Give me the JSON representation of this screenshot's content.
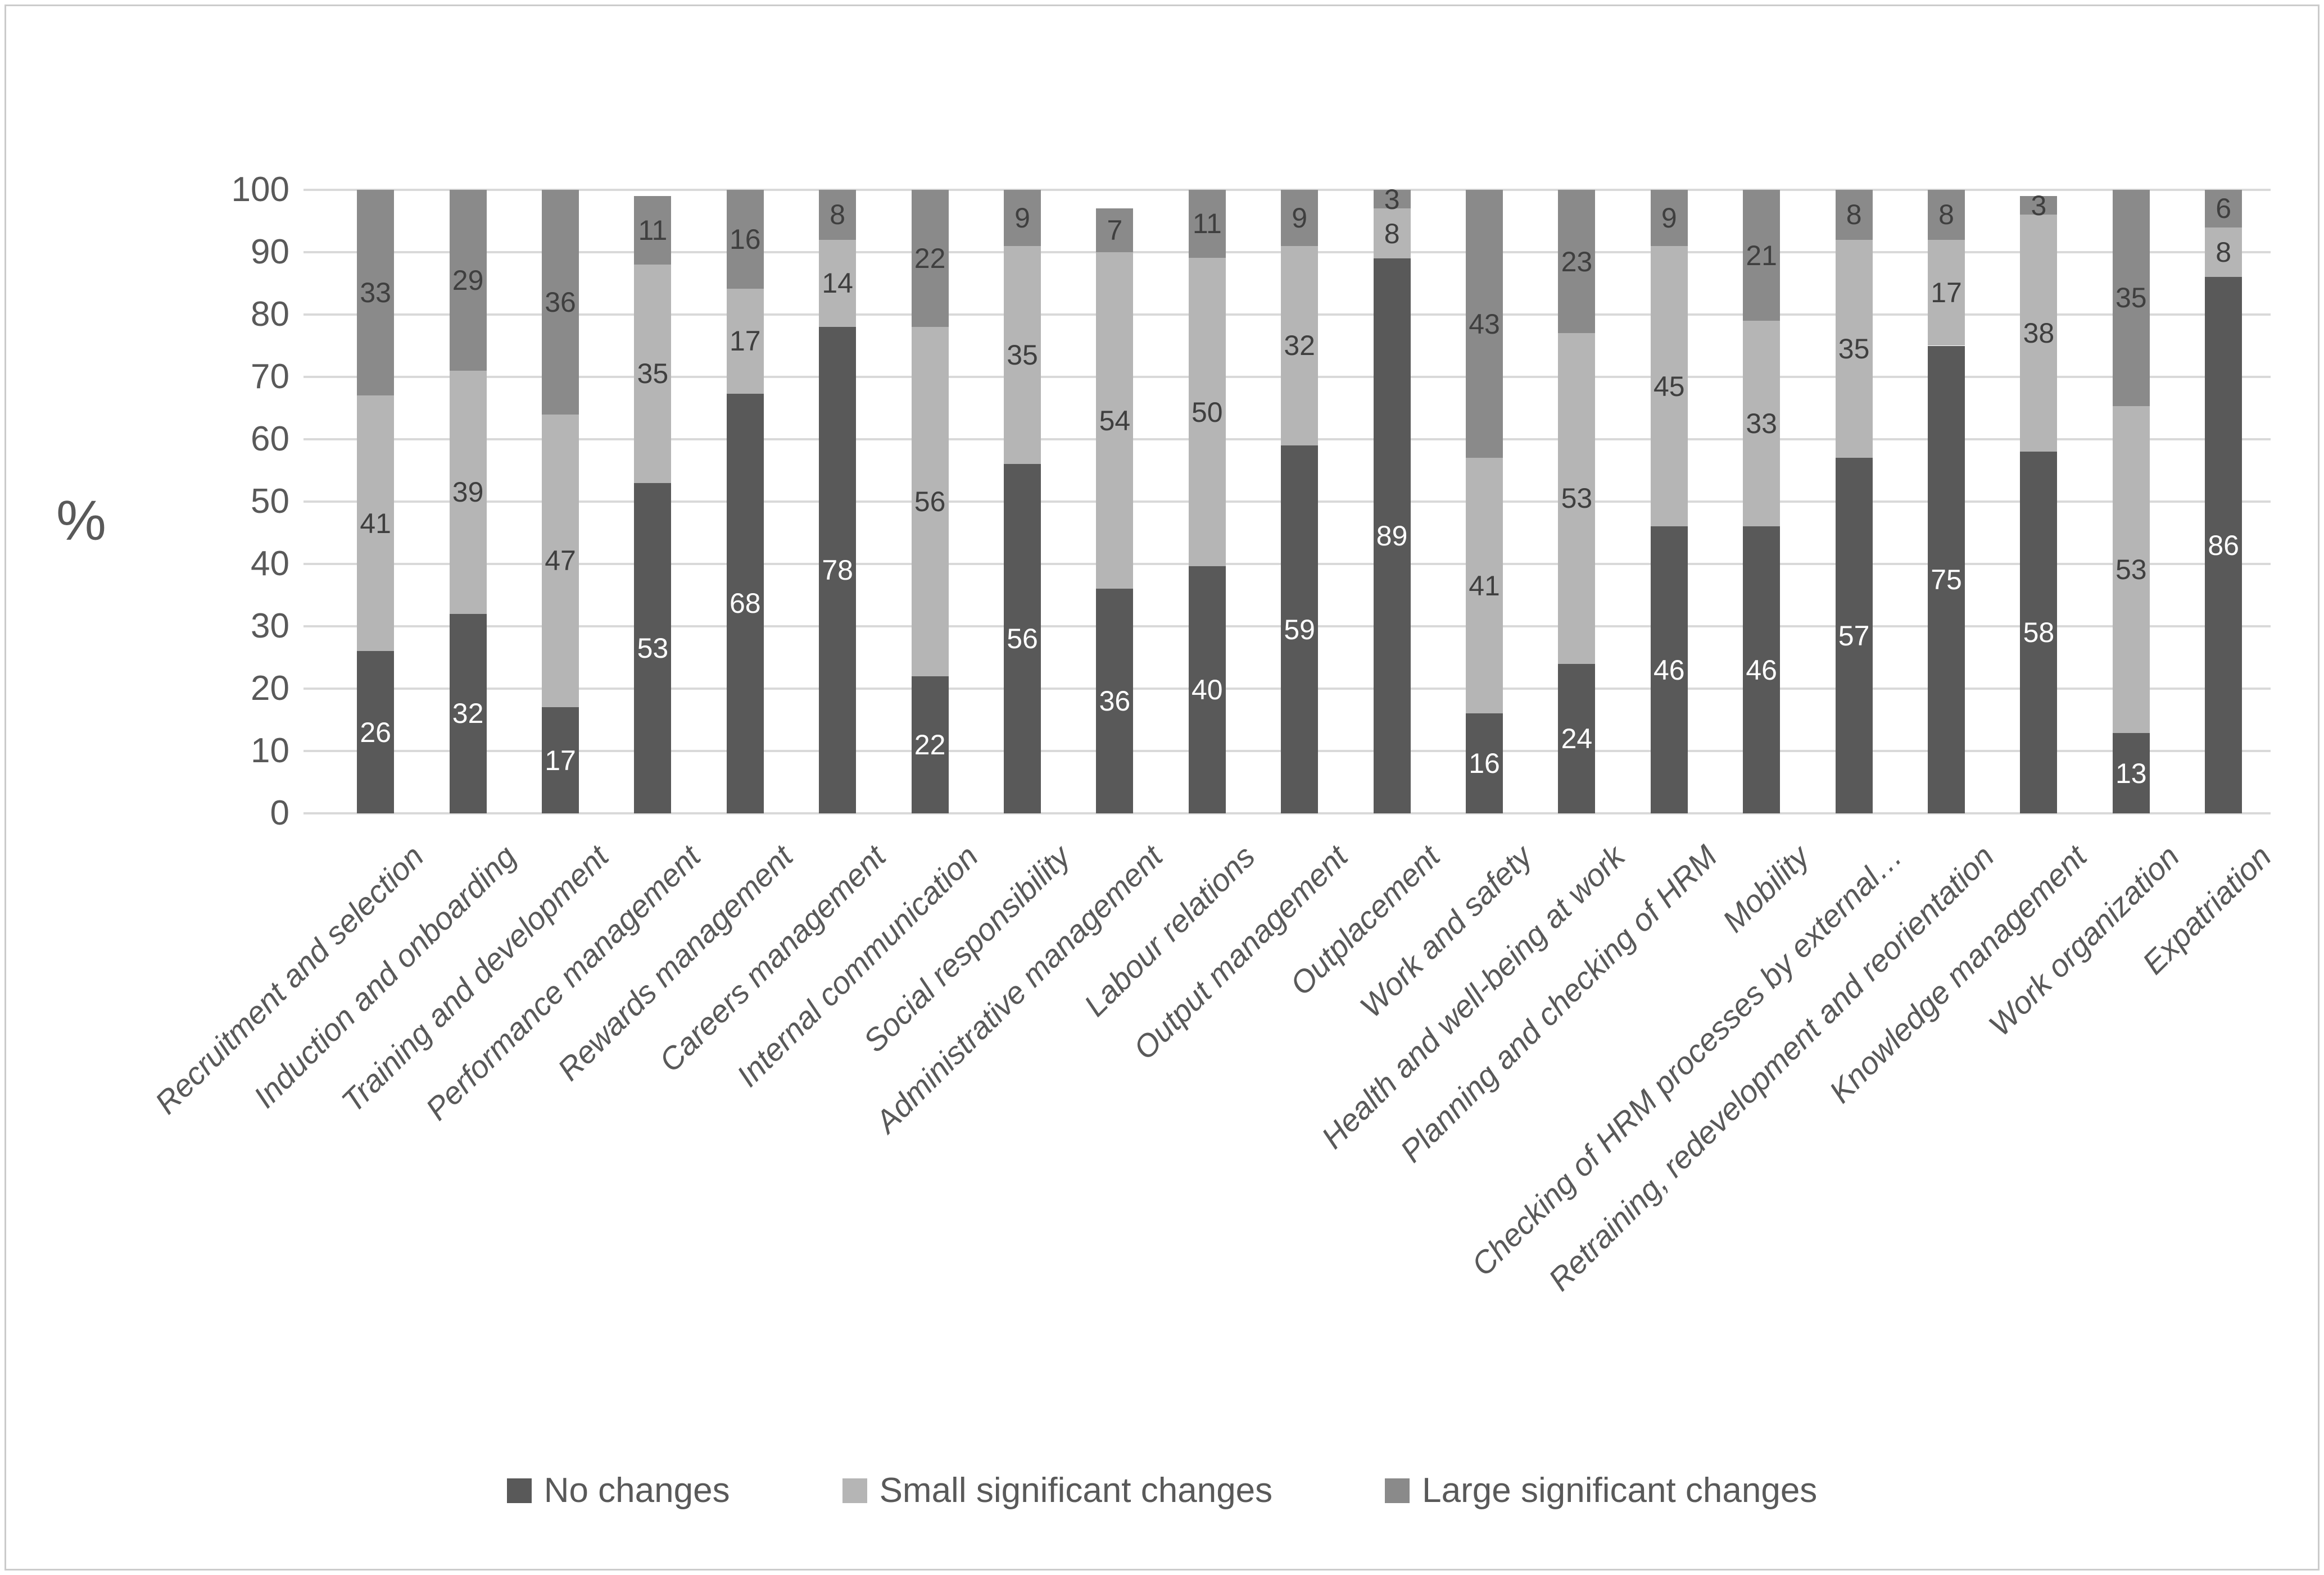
{
  "chart_data": {
    "type": "bar",
    "stacked": true,
    "title": "",
    "xlabel": "",
    "ylabel": "%",
    "ylim": [
      0,
      100
    ],
    "yticks": [
      0,
      10,
      20,
      30,
      40,
      50,
      60,
      70,
      80,
      90,
      100
    ],
    "grid": true,
    "legend_position": "bottom",
    "categories": [
      "Recruitment and selection",
      "Induction and onboarding",
      "Training and development",
      "Performance management",
      "Rewards management",
      "Careers management",
      "Internal communication",
      "Social responsibility",
      "Administrative management",
      "Labour relations",
      "Output management",
      "Outplacement",
      "Work and safety",
      "Health and well-being at work",
      "Planning and checking of HRM",
      "Mobility",
      "Checking of HRM processes by external…",
      "Retraining, redevelopment and reorientation",
      "Knowledge management",
      "Work organization",
      "Expatriation"
    ],
    "series": [
      {
        "name": "No changes",
        "color": "#595959",
        "label_color": "#ffffff",
        "values": [
          26,
          32,
          17,
          53,
          68,
          78,
          22,
          56,
          36,
          40,
          59,
          89,
          16,
          24,
          46,
          46,
          57,
          75,
          58,
          13,
          86
        ]
      },
      {
        "name": "Small significant changes",
        "color": "#b5b5b5",
        "label_color": "#3f3f3f",
        "values": [
          41,
          39,
          47,
          35,
          17,
          14,
          56,
          35,
          54,
          50,
          32,
          8,
          41,
          53,
          45,
          33,
          35,
          17,
          38,
          53,
          8
        ]
      },
      {
        "name": "Large significant changes",
        "color": "#8a8a8a",
        "label_color": "#3f3f3f",
        "values": [
          33,
          29,
          36,
          11,
          16,
          8,
          22,
          9,
          7,
          11,
          9,
          3,
          43,
          23,
          9,
          21,
          8,
          8,
          3,
          35,
          6
        ]
      }
    ],
    "colors": {
      "gridline": "#d9d9d9",
      "axis_text": "#595959",
      "frame_border": "#cbcbcb"
    }
  }
}
